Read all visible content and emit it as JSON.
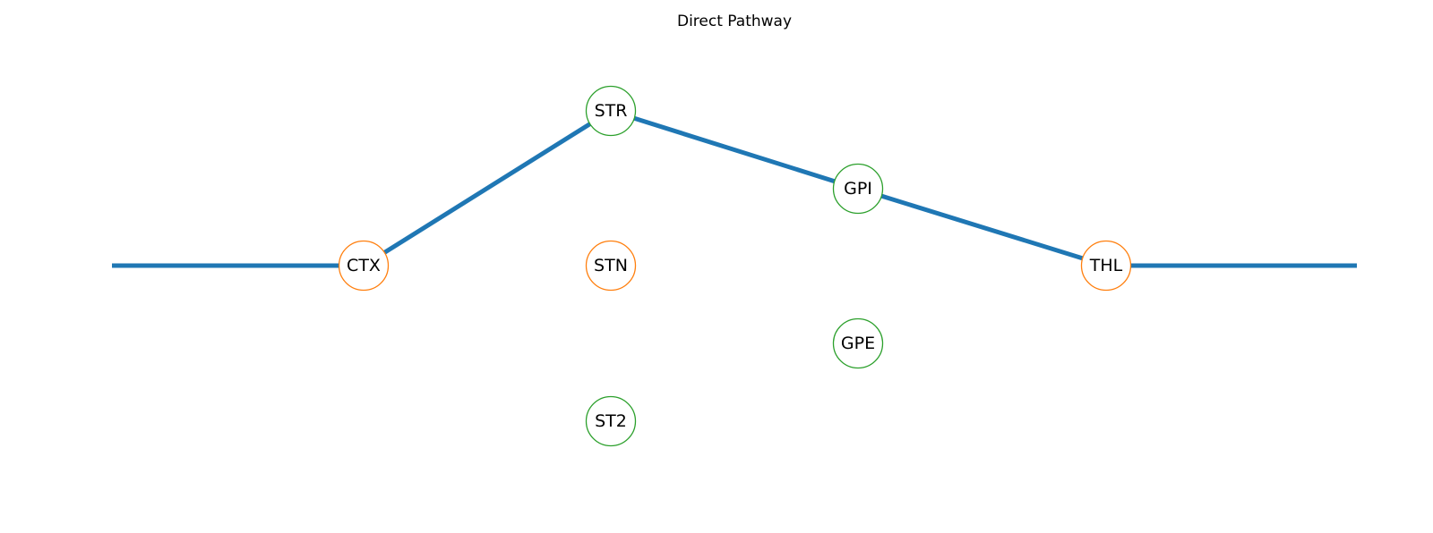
{
  "title": "Direct Pathway",
  "colors": {
    "pathway": "#1f77b4",
    "excitatory": "#ff7f0e",
    "inhibitory": "#2ca02c",
    "node_fill": "#ffffff"
  },
  "nodes": [
    {
      "id": "ctx",
      "label": "CTX",
      "kind": "excitatory"
    },
    {
      "id": "str",
      "label": "STR",
      "kind": "inhibitory"
    },
    {
      "id": "stn",
      "label": "STN",
      "kind": "excitatory"
    },
    {
      "id": "st2",
      "label": "ST2",
      "kind": "inhibitory"
    },
    {
      "id": "gpi",
      "label": "GPI",
      "kind": "inhibitory"
    },
    {
      "id": "gpe",
      "label": "GPE",
      "kind": "inhibitory"
    },
    {
      "id": "thl",
      "label": "THL",
      "kind": "excitatory"
    }
  ],
  "pathway": [
    "ctx",
    "str",
    "gpi",
    "thl"
  ]
}
